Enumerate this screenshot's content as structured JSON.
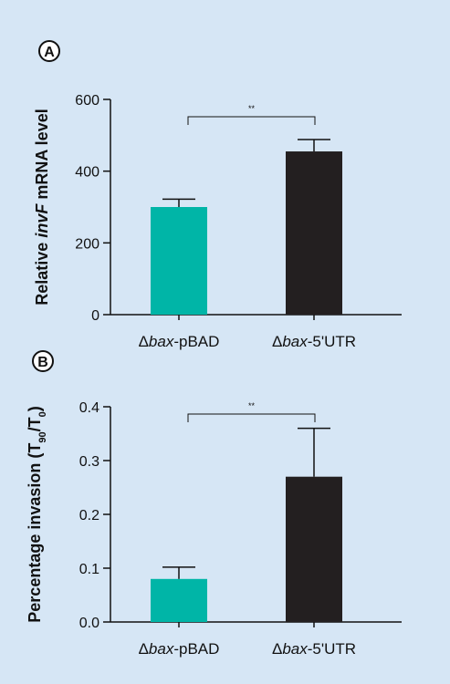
{
  "background": "#d6e6f5",
  "chart_data": [
    {
      "type": "bar",
      "panel_label": "A",
      "ylabel": {
        "prefix": "Relative ",
        "italic": "invF",
        "suffix": " mRNA level"
      },
      "ylim": [
        0,
        600
      ],
      "yticks": [
        "0",
        "200",
        "400",
        "600"
      ],
      "categories": [
        {
          "italic": "bax",
          "suffix": "-pBAD"
        },
        {
          "italic": "bax",
          "suffix": "-5'UTR"
        }
      ],
      "values": [
        300,
        455
      ],
      "errors": [
        22,
        33
      ],
      "colors": [
        "#00b5a7",
        "#231f20"
      ],
      "significance": "**"
    },
    {
      "type": "bar",
      "panel_label": "B",
      "ylabel": {
        "prefix": "Percentage invasion (T",
        "sub1": "90",
        "mid": "/T",
        "sub2": "0",
        "suffix": ")"
      },
      "ylim": [
        0,
        0.4
      ],
      "yticks": [
        "0.0",
        "0.1",
        "0.2",
        "0.3",
        "0.4"
      ],
      "categories": [
        {
          "italic": "bax",
          "suffix": "-pBAD"
        },
        {
          "italic": "bax",
          "suffix": "-5'UTR"
        }
      ],
      "values": [
        0.08,
        0.27
      ],
      "errors": [
        0.022,
        0.09
      ],
      "colors": [
        "#00b5a7",
        "#231f20"
      ],
      "significance": "**"
    }
  ]
}
